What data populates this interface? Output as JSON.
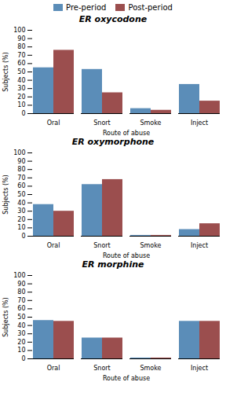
{
  "chart_data": [
    {
      "type": "bar",
      "title": "ER oxycodone",
      "categories": [
        "Oral",
        "Snort",
        "Smoke",
        "Inject"
      ],
      "series": [
        {
          "name": "Pre-period",
          "color": "#5b8db8",
          "values": [
            55,
            53,
            6,
            35
          ]
        },
        {
          "name": "Post-period",
          "color": "#9b4e4e",
          "values": [
            76,
            25,
            4,
            15
          ]
        }
      ],
      "xlabel": "Route of abuse",
      "ylabel": "Subjects (%)",
      "ylim": [
        0,
        100
      ],
      "yticks": [
        0,
        10,
        20,
        30,
        40,
        50,
        60,
        70,
        80,
        90,
        100
      ],
      "legend": "top"
    },
    {
      "type": "bar",
      "title": "ER oxymorphone",
      "categories": [
        "Oral",
        "Snort",
        "Smoke",
        "Inject"
      ],
      "series": [
        {
          "name": "Pre-period",
          "color": "#5b8db8",
          "values": [
            38,
            62,
            1,
            8
          ]
        },
        {
          "name": "Post-period",
          "color": "#9b4e4e",
          "values": [
            30,
            68,
            1,
            15
          ]
        }
      ],
      "xlabel": "Route of abuse",
      "ylabel": "Subjects (%)",
      "ylim": [
        0,
        100
      ],
      "yticks": [
        0,
        10,
        20,
        30,
        40,
        50,
        60,
        70,
        80,
        90,
        100
      ]
    },
    {
      "type": "bar",
      "title": "ER morphine",
      "categories": [
        "Oral",
        "Snort",
        "Smoke",
        "Inject"
      ],
      "series": [
        {
          "name": "Pre-period",
          "color": "#5b8db8",
          "values": [
            46,
            25,
            1,
            45
          ]
        },
        {
          "name": "Post-period",
          "color": "#9b4e4e",
          "values": [
            45,
            25,
            1,
            45
          ]
        }
      ],
      "xlabel": "Route of abuse",
      "ylabel": "Subjects (%)",
      "ylim": [
        0,
        100
      ],
      "yticks": [
        0,
        10,
        20,
        30,
        40,
        50,
        60,
        70,
        80,
        90,
        100
      ]
    }
  ]
}
